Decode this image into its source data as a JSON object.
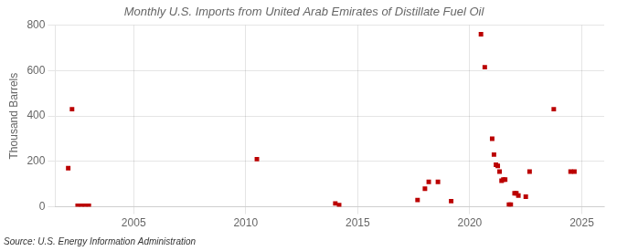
{
  "chart_data": {
    "type": "scatter",
    "title": "Monthly U.S. Imports from United Arab Emirates of Distillate Fuel Oil",
    "ylabel": "Thousand Barrels",
    "annotation": "Source: U.S. Energy Information Administration",
    "color": "#bb0000",
    "marker": "square",
    "grid": true,
    "xlim": [
      2001.5,
      2026.0
    ],
    "xticks": [
      2005,
      2010,
      2015,
      2020,
      2025
    ],
    "ylim": [
      0,
      800
    ],
    "yticks": [
      0,
      200,
      400,
      600,
      800
    ],
    "x": [
      2002.08,
      2002.25,
      2002.5,
      2002.67,
      2002.83,
      2003.0,
      2010.5,
      2014.0,
      2014.17,
      2017.67,
      2018.0,
      2018.17,
      2018.58,
      2019.17,
      2020.5,
      2020.67,
      2021.0,
      2021.08,
      2021.17,
      2021.25,
      2021.33,
      2021.42,
      2021.5,
      2021.58,
      2021.75,
      2021.83,
      2022.0,
      2022.08,
      2022.17,
      2022.5,
      2022.67,
      2023.75,
      2024.5,
      2024.67
    ],
    "values": [
      170,
      430,
      5,
      5,
      5,
      5,
      210,
      15,
      8,
      30,
      80,
      110,
      110,
      25,
      760,
      615,
      300,
      230,
      185,
      180,
      155,
      115,
      120,
      120,
      10,
      10,
      60,
      60,
      50,
      45,
      155,
      430,
      155,
      155
    ]
  }
}
